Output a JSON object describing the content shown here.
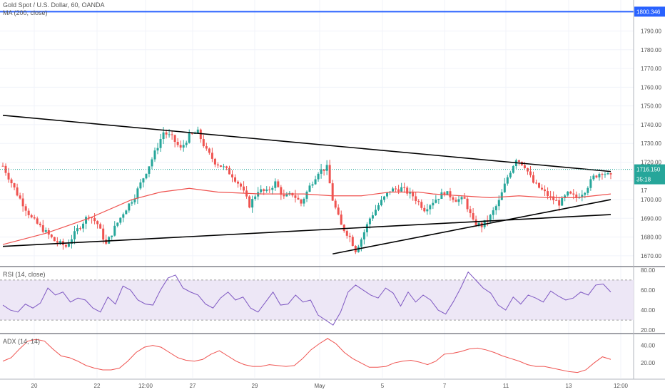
{
  "legend": {
    "symbol": "Gold Spot / U.S. Dollar, 60, OANDA",
    "ma": "MA (200, close)",
    "rsi": "RSI (14, close)",
    "adx": "ADX (14, 14)"
  },
  "price_labels": {
    "ma_level": "1800.346",
    "last_price": "1716.150",
    "countdown": "35:18",
    "partial_tick": "17"
  },
  "colors": {
    "up": "#26a69a",
    "down": "#ef5350",
    "ma": "#ef5350",
    "blue_line": "#2962ff",
    "rsi": "#7e57c2",
    "rsi_band": "#ede7f6",
    "adx": "#ef5350",
    "trendline": "#000000",
    "grid": "#f0f3fa"
  },
  "chart_data": [
    {
      "type": "line",
      "name": "price",
      "x_ticks": [
        "20",
        "22",
        "12:00",
        "27",
        "29",
        "May",
        "5",
        "7",
        "11",
        "13",
        "12:00"
      ],
      "y_ticks": [
        1670,
        1680,
        1690,
        1700,
        1710,
        1720,
        1730,
        1740,
        1750,
        1760,
        1770,
        1780,
        1790
      ],
      "ylim": [
        1665,
        1802
      ],
      "horizontal_levels": [
        1800.346
      ],
      "last_price": 1716.15,
      "price_path": [
        [
          0,
          1718
        ],
        [
          5,
          1703
        ],
        [
          10,
          1690
        ],
        [
          14,
          1684
        ],
        [
          18,
          1678
        ],
        [
          22,
          1675
        ],
        [
          26,
          1684
        ],
        [
          30,
          1692
        ],
        [
          33,
          1687
        ],
        [
          36,
          1676
        ],
        [
          39,
          1685
        ],
        [
          42,
          1693
        ],
        [
          46,
          1702
        ],
        [
          50,
          1715
        ],
        [
          53,
          1725
        ],
        [
          56,
          1736
        ],
        [
          59,
          1733
        ],
        [
          62,
          1727
        ],
        [
          65,
          1734
        ],
        [
          68,
          1736
        ],
        [
          71,
          1726
        ],
        [
          74,
          1720
        ],
        [
          77,
          1717
        ],
        [
          80,
          1713
        ],
        [
          83,
          1707
        ],
        [
          86,
          1697
        ],
        [
          89,
          1705
        ],
        [
          92,
          1704
        ],
        [
          95,
          1709
        ],
        [
          98,
          1701
        ],
        [
          101,
          1703
        ],
        [
          104,
          1698
        ],
        [
          107,
          1707
        ],
        [
          110,
          1715
        ],
        [
          113,
          1717
        ],
        [
          115,
          1700
        ],
        [
          118,
          1686
        ],
        [
          121,
          1680
        ],
        [
          123,
          1673
        ],
        [
          125,
          1679
        ],
        [
          128,
          1690
        ],
        [
          131,
          1697
        ],
        [
          135,
          1705
        ],
        [
          139,
          1706
        ],
        [
          143,
          1702
        ],
        [
          147,
          1695
        ],
        [
          150,
          1699
        ],
        [
          154,
          1704
        ],
        [
          158,
          1700
        ],
        [
          161,
          1700
        ],
        [
          164,
          1688
        ],
        [
          167,
          1686
        ],
        [
          170,
          1691
        ],
        [
          173,
          1699
        ],
        [
          176,
          1712
        ],
        [
          179,
          1722
        ],
        [
          182,
          1718
        ],
        [
          185,
          1709
        ],
        [
          188,
          1705
        ],
        [
          191,
          1701
        ],
        [
          194,
          1698
        ],
        [
          197,
          1703
        ],
        [
          200,
          1701
        ],
        [
          203,
          1705
        ],
        [
          206,
          1712
        ],
        [
          209,
          1715
        ],
        [
          212,
          1712
        ]
      ],
      "ma_path": [
        [
          0,
          1676
        ],
        [
          15,
          1682
        ],
        [
          30,
          1690
        ],
        [
          45,
          1700
        ],
        [
          55,
          1704
        ],
        [
          65,
          1706
        ],
        [
          75,
          1704
        ],
        [
          90,
          1703
        ],
        [
          105,
          1703
        ],
        [
          115,
          1702
        ],
        [
          125,
          1702
        ],
        [
          135,
          1704
        ],
        [
          145,
          1704
        ],
        [
          150,
          1703
        ],
        [
          160,
          1702
        ],
        [
          170,
          1701
        ],
        [
          180,
          1702
        ],
        [
          190,
          1701
        ],
        [
          200,
          1701
        ],
        [
          212,
          1703
        ]
      ],
      "trendlines": [
        {
          "from": [
            0,
            1745
          ],
          "to": [
            212,
            1715
          ]
        },
        {
          "from": [
            0,
            1675
          ],
          "to": [
            212,
            1692
          ]
        },
        {
          "from": [
            115,
            1671
          ],
          "to": [
            212,
            1700
          ]
        }
      ]
    },
    {
      "type": "line",
      "name": "RSI (14, close)",
      "y_ticks": [
        20,
        40,
        60,
        80
      ],
      "ylim": [
        18,
        82
      ],
      "band": [
        30,
        70
      ],
      "values": [
        45,
        40,
        38,
        46,
        42,
        47,
        62,
        55,
        58,
        48,
        52,
        50,
        42,
        38,
        53,
        46,
        64,
        60,
        50,
        46,
        45,
        60,
        72,
        75,
        62,
        58,
        55,
        46,
        42,
        52,
        58,
        50,
        53,
        42,
        38,
        48,
        58,
        45,
        46,
        55,
        48,
        50,
        35,
        30,
        25,
        38,
        58,
        65,
        60,
        55,
        52,
        62,
        57,
        44,
        58,
        48,
        55,
        50,
        40,
        36,
        48,
        62,
        78,
        70,
        62,
        57,
        45,
        40,
        53,
        46,
        55,
        52,
        48,
        59,
        54,
        50,
        52,
        58,
        55,
        65,
        66,
        58
      ]
    },
    {
      "type": "line",
      "name": "ADX (14, 14)",
      "y_ticks": [
        20,
        40
      ],
      "ylim": [
        3,
        52
      ],
      "values": [
        22,
        26,
        36,
        45,
        47,
        45,
        36,
        28,
        26,
        22,
        17,
        14,
        12,
        12,
        14,
        22,
        32,
        38,
        40,
        38,
        32,
        26,
        23,
        22,
        24,
        30,
        34,
        28,
        22,
        18,
        16,
        16,
        18,
        17,
        16,
        17,
        25,
        35,
        42,
        48,
        42,
        32,
        25,
        20,
        15,
        15,
        16,
        20,
        22,
        23,
        21,
        18,
        22,
        30,
        31,
        33,
        36,
        37,
        35,
        32,
        28,
        25,
        22,
        18,
        16,
        16,
        14,
        12,
        10,
        9,
        12,
        20,
        27,
        24
      ]
    }
  ]
}
